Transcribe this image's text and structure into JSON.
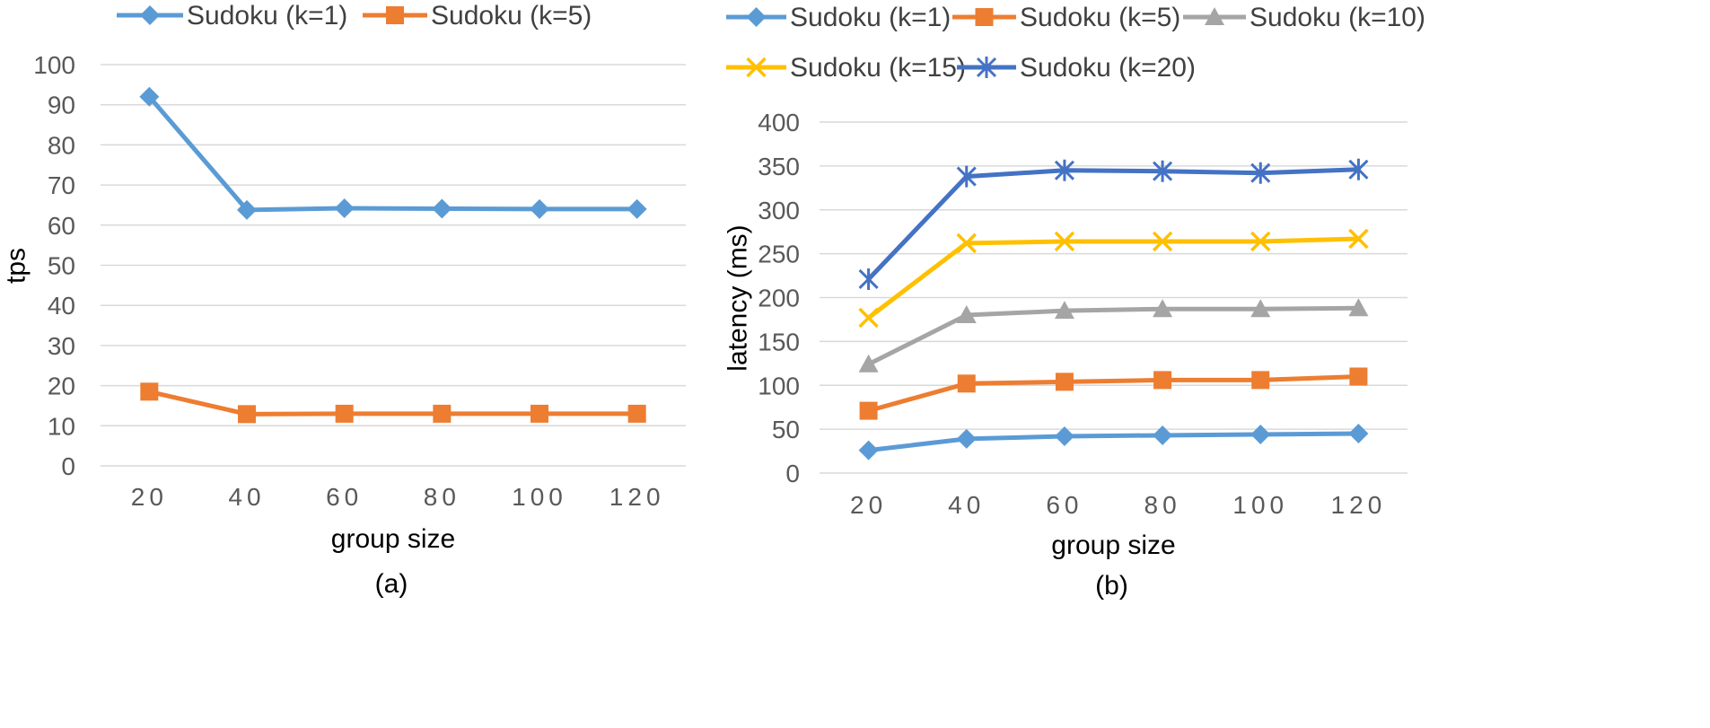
{
  "chart_data": [
    {
      "type": "line",
      "caption": "(a)",
      "xlabel": "group size",
      "ylabel": "tps",
      "categories": [
        "20",
        "40",
        "60",
        "80",
        "100",
        "120"
      ],
      "yticks": [
        "0",
        "10",
        "20",
        "30",
        "40",
        "50",
        "60",
        "70",
        "80",
        "90",
        "100"
      ],
      "ylim": [
        0,
        100
      ],
      "grid": true,
      "legend_position": "top",
      "series": [
        {
          "name": "Sudoku (k=1)",
          "color": "#5b9bd5",
          "marker": "diamond",
          "values": [
            92,
            63.8,
            64.2,
            64.1,
            64.0,
            64.0
          ]
        },
        {
          "name": "Sudoku (k=5)",
          "color": "#ed7d31",
          "marker": "square",
          "values": [
            18.5,
            12.9,
            13.0,
            13.0,
            13.0,
            13.0
          ]
        }
      ]
    },
    {
      "type": "line",
      "caption": "(b)",
      "xlabel": "group size",
      "ylabel": "latency (ms)",
      "categories": [
        "20",
        "40",
        "60",
        "80",
        "100",
        "120"
      ],
      "yticks": [
        "0",
        "50",
        "100",
        "150",
        "200",
        "250",
        "300",
        "350",
        "400"
      ],
      "ylim": [
        0,
        400
      ],
      "grid": true,
      "legend_position": "top",
      "series": [
        {
          "name": "Sudoku (k=1)",
          "color": "#5b9bd5",
          "marker": "diamond",
          "values": [
            26,
            39,
            42,
            43,
            44,
            45
          ]
        },
        {
          "name": "Sudoku (k=5)",
          "color": "#ed7d31",
          "marker": "square",
          "values": [
            71,
            102,
            104,
            106,
            106,
            110
          ]
        },
        {
          "name": "Sudoku (k=10)",
          "color": "#a5a5a5",
          "marker": "triangle",
          "values": [
            124,
            180,
            185,
            187,
            187,
            188
          ]
        },
        {
          "name": "Sudoku (k=15)",
          "color": "#ffc000",
          "marker": "x",
          "values": [
            177,
            262,
            264,
            264,
            264,
            267
          ]
        },
        {
          "name": "Sudoku (k=20)",
          "color": "#4472c4",
          "marker": "star",
          "values": [
            221,
            338,
            345,
            344,
            342,
            346
          ]
        }
      ]
    }
  ]
}
